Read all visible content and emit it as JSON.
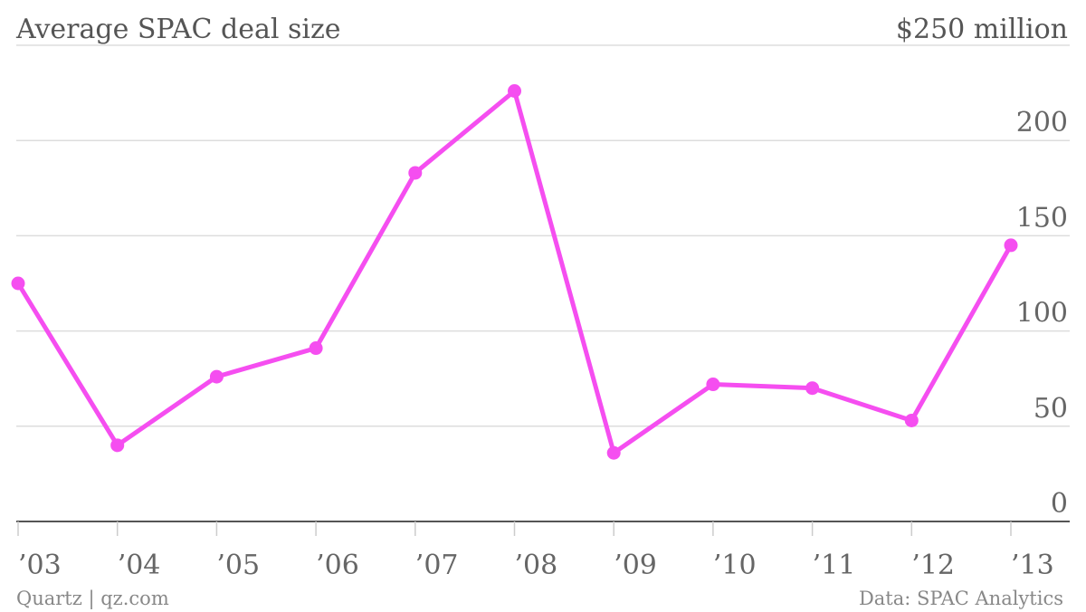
{
  "title": "Average SPAC deal size",
  "unit_label": "$250 million",
  "footer": {
    "left": "Quartz | qz.com",
    "right": "Data: SPAC Analytics"
  },
  "colors": {
    "series": "#f54ef0"
  },
  "chart_data": {
    "type": "line",
    "title": "Average SPAC deal size",
    "xlabel": "",
    "ylabel": "",
    "x": [
      "’03",
      "’04",
      "’05",
      "’06",
      "’07",
      "’08",
      "’09",
      "’10",
      "’11",
      "’12",
      "’13"
    ],
    "series": [
      {
        "values": [
          125,
          40,
          76,
          91,
          183,
          226,
          36,
          72,
          70,
          53,
          145
        ]
      }
    ],
    "ylim": [
      0,
      250
    ],
    "yticks": [
      0,
      50,
      100,
      150,
      200
    ],
    "ytick_labels": [
      "0",
      "50",
      "100",
      "150",
      "200"
    ],
    "top_tick_label": "$250 million",
    "grid": true,
    "legend": "none"
  }
}
